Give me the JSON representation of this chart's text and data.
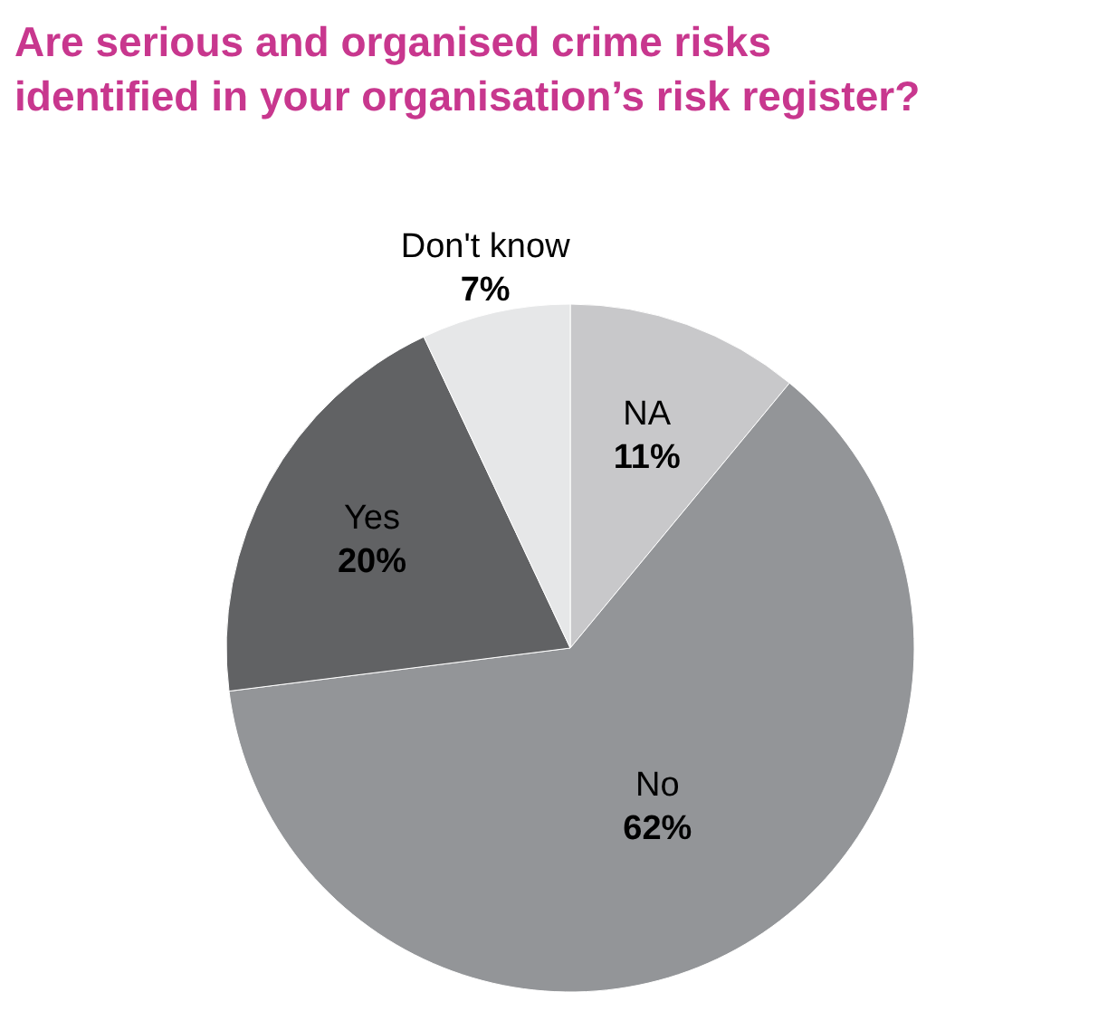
{
  "chart_data": {
    "type": "pie",
    "title": "Are serious and organised crime risks identified in your organisation’s risk register?",
    "categories": [
      "NA",
      "No",
      "Yes",
      "Don't know"
    ],
    "values": [
      11,
      62,
      20,
      7
    ],
    "colors": [
      "#c8c8ca",
      "#939598",
      "#616264",
      "#e6e7e8"
    ],
    "value_labels": [
      "11%",
      "62%",
      "20%",
      "7%"
    ]
  }
}
